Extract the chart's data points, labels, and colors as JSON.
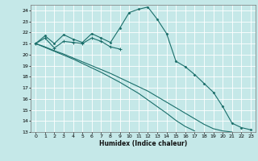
{
  "xlabel": "Humidex (Indice chaleur)",
  "bg_color": "#c5e8e8",
  "line_color": "#1a6e6a",
  "grid_color": "#ffffff",
  "xlim": [
    -0.5,
    23.5
  ],
  "ylim": [
    13,
    24.5
  ],
  "yticks": [
    13,
    14,
    15,
    16,
    17,
    18,
    19,
    20,
    21,
    22,
    23,
    24
  ],
  "xticks": [
    0,
    1,
    2,
    3,
    4,
    5,
    6,
    7,
    8,
    9,
    10,
    11,
    12,
    13,
    14,
    15,
    16,
    17,
    18,
    19,
    20,
    21,
    22,
    23
  ],
  "s1_x": [
    0,
    1,
    2,
    3,
    4,
    5,
    6,
    7,
    8,
    9
  ],
  "s1_y": [
    21.0,
    21.5,
    20.6,
    21.2,
    21.1,
    21.0,
    21.5,
    21.2,
    20.7,
    20.5
  ],
  "s2_x": [
    0,
    1,
    2,
    3,
    4,
    5,
    6,
    7,
    8,
    9,
    10,
    11,
    12,
    13,
    14,
    15,
    16,
    17,
    18,
    19,
    20,
    21,
    22,
    23
  ],
  "s2_y": [
    21.0,
    21.7,
    21.0,
    21.8,
    21.4,
    21.1,
    21.9,
    21.5,
    21.1,
    22.4,
    23.8,
    24.1,
    24.3,
    23.2,
    21.9,
    19.4,
    18.9,
    18.2,
    17.4,
    16.6,
    15.3,
    13.8,
    13.4,
    13.2
  ],
  "s3_x": [
    0,
    1,
    2,
    3,
    4,
    5,
    6,
    7,
    8,
    9,
    10,
    11,
    12,
    13,
    14,
    15,
    16,
    17,
    18,
    19,
    20,
    21
  ],
  "s3_y": [
    21.0,
    20.7,
    20.35,
    20.05,
    19.7,
    19.35,
    19.0,
    18.65,
    18.3,
    17.9,
    17.5,
    17.1,
    16.7,
    16.2,
    15.7,
    15.2,
    14.7,
    14.2,
    13.7,
    13.3,
    13.1,
    13.0
  ],
  "s4_x": [
    0,
    1,
    2,
    3,
    4,
    5,
    6,
    7,
    8,
    9,
    10,
    11,
    12,
    13,
    14,
    15,
    16,
    17
  ],
  "s4_y": [
    21.0,
    20.65,
    20.3,
    19.95,
    19.6,
    19.2,
    18.8,
    18.4,
    17.95,
    17.5,
    17.0,
    16.5,
    15.9,
    15.3,
    14.7,
    14.05,
    13.5,
    13.1
  ],
  "s2_markers_x": [
    0,
    1,
    2,
    3,
    4,
    5,
    6,
    7,
    8,
    9,
    10,
    11,
    12,
    13,
    14,
    15,
    16,
    17,
    18,
    19,
    20,
    21,
    22,
    23
  ],
  "s2_markers_y": [
    21.0,
    21.7,
    21.0,
    21.8,
    21.4,
    21.1,
    21.9,
    21.5,
    21.1,
    22.4,
    23.8,
    24.1,
    24.3,
    23.2,
    21.9,
    19.4,
    18.9,
    18.2,
    17.4,
    16.6,
    15.3,
    13.8,
    13.4,
    13.2
  ]
}
